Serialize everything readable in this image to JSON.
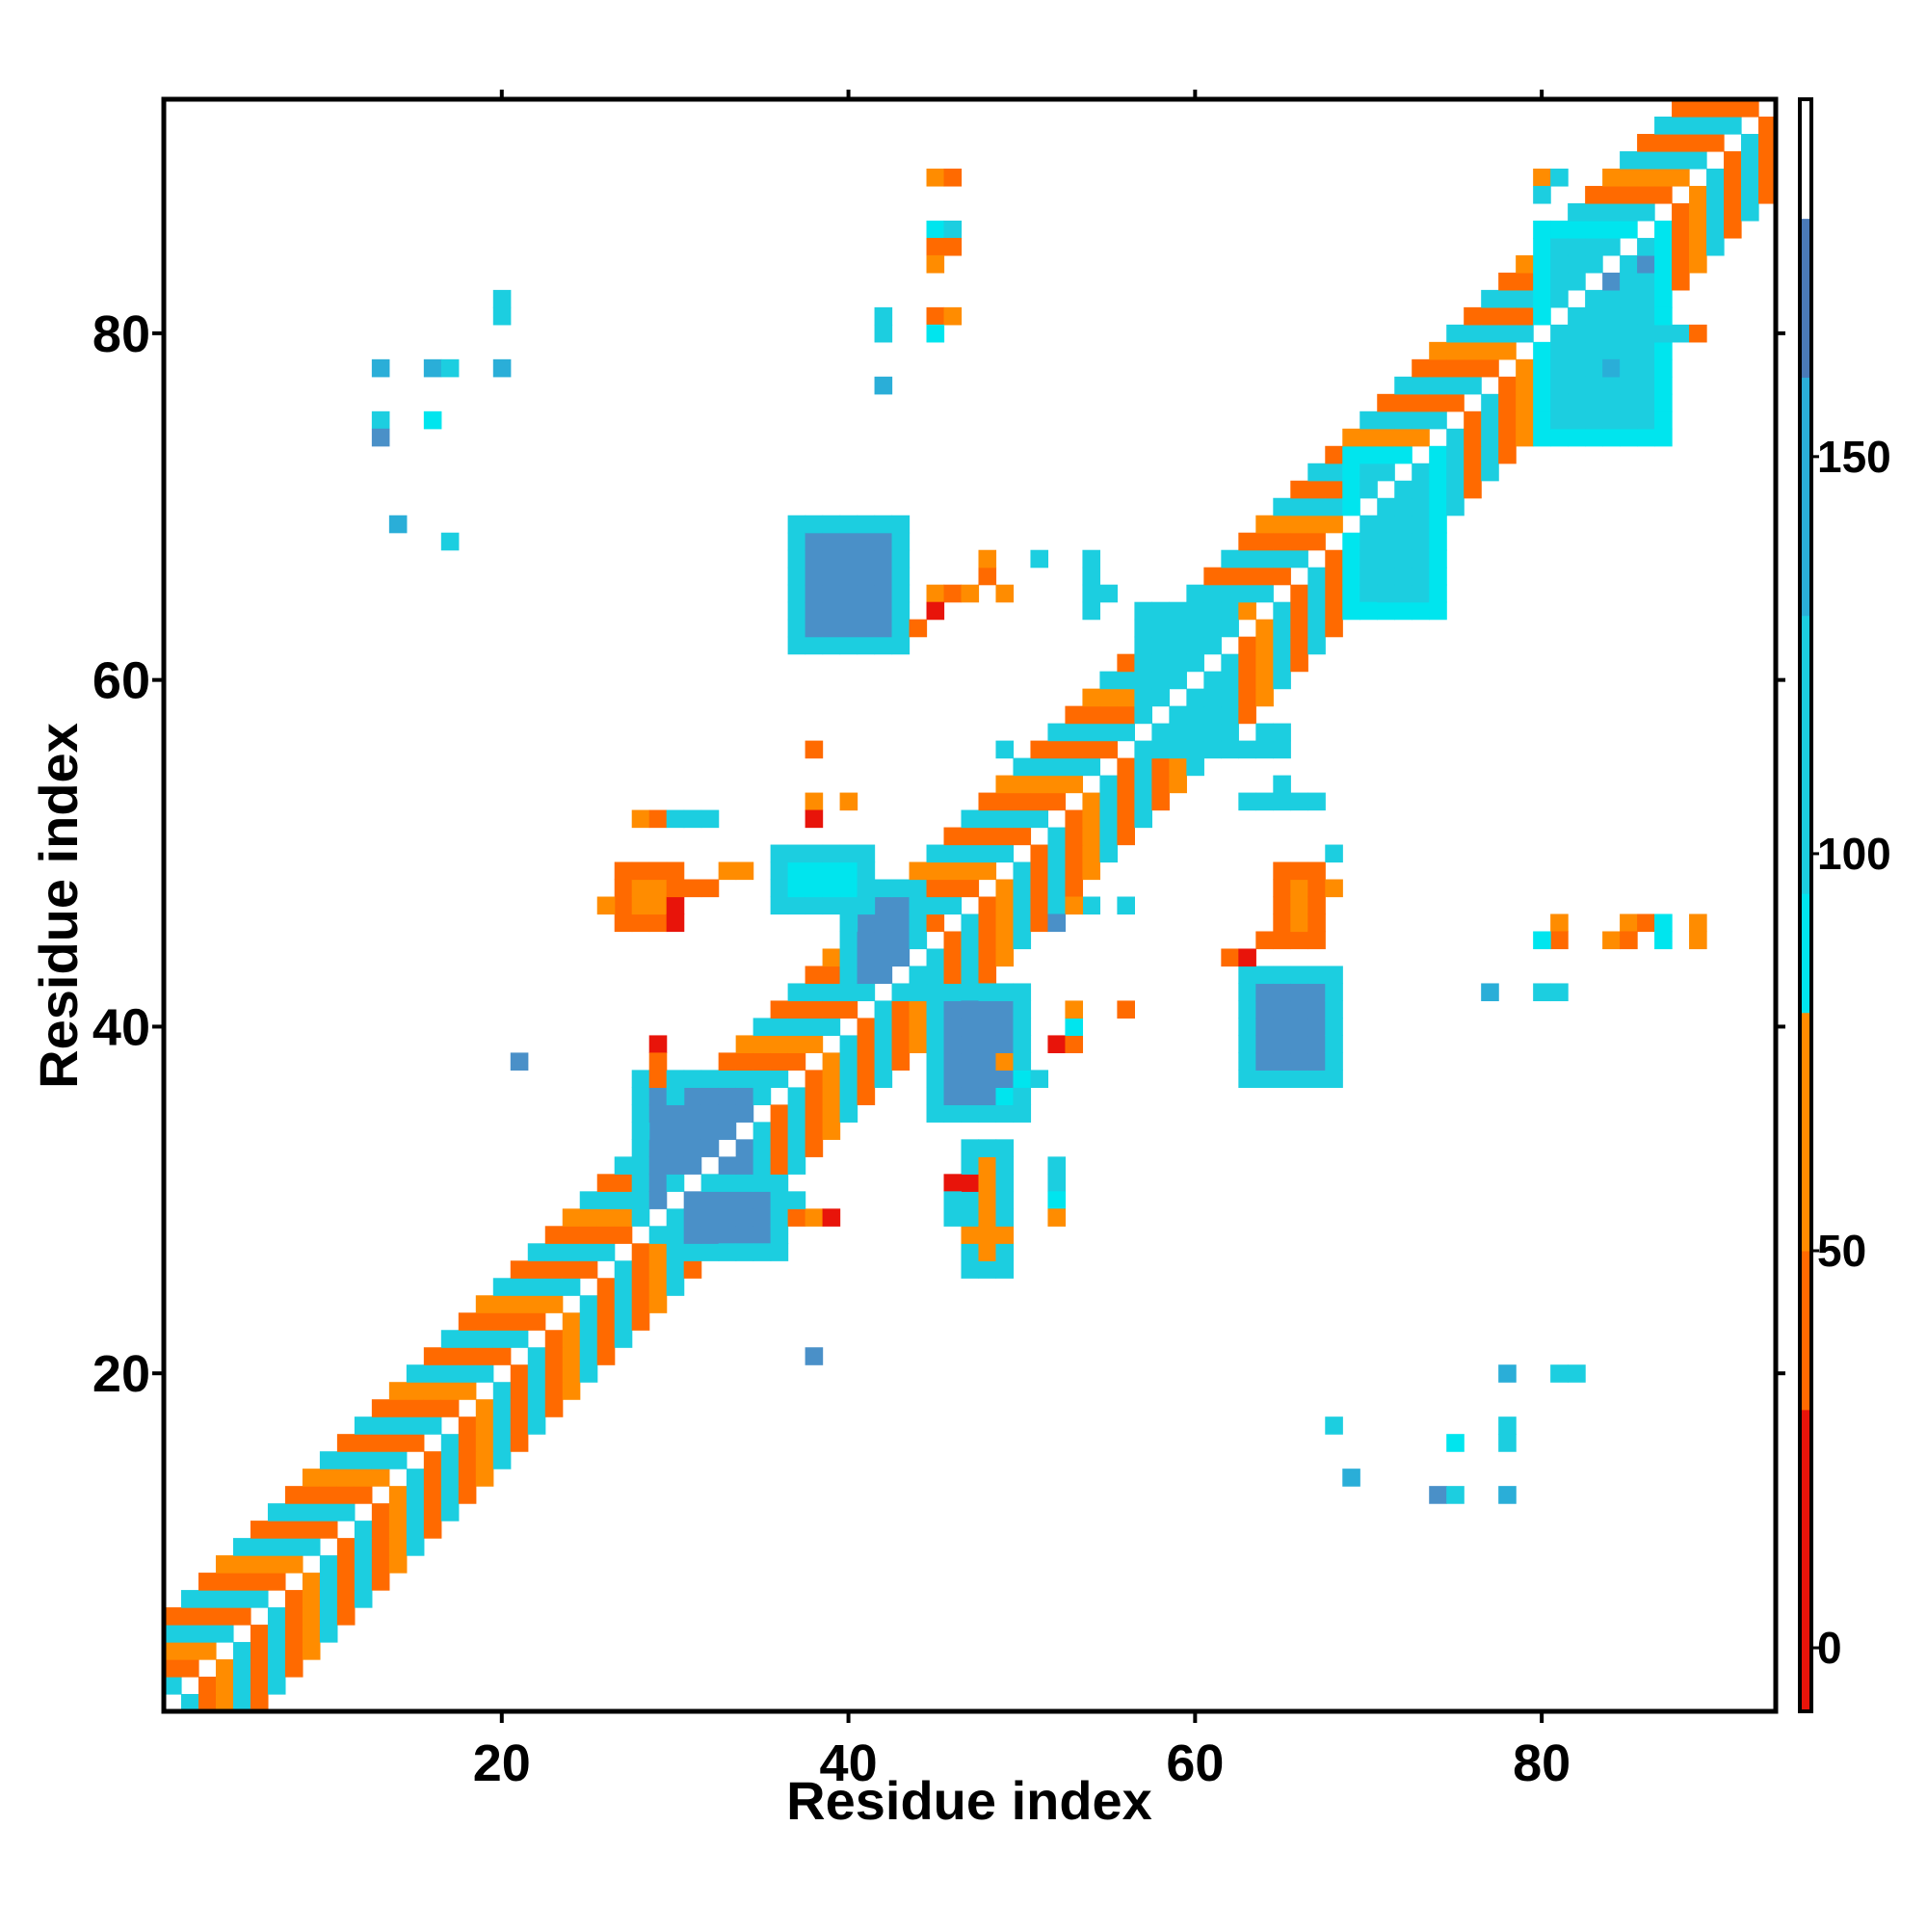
{
  "chart_data": {
    "type": "heatmap",
    "title": "",
    "xlabel": "Residue index",
    "ylabel": "Residue index",
    "xlim": [
      0.5,
      93.5
    ],
    "ylim": [
      0.5,
      93.5
    ],
    "x_ticks": [
      20,
      40,
      60,
      80
    ],
    "y_ticks": [
      20,
      40,
      60,
      80
    ],
    "x_tick_labels": [
      "20",
      "40",
      "60",
      "80"
    ],
    "y_tick_labels": [
      "20",
      "40",
      "60",
      "80"
    ],
    "grid": false,
    "legend": "colorbar-right",
    "colorbar": {
      "range": [
        -8,
        195
      ],
      "ticks": [
        0,
        50,
        100,
        150
      ],
      "tick_labels": [
        "0",
        "50",
        "100",
        "150"
      ],
      "bands": [
        {
          "from": -8,
          "to": 30,
          "color": "#e8140a"
        },
        {
          "from": 30,
          "to": 50,
          "color": "#ff6a00"
        },
        {
          "from": 50,
          "to": 80,
          "color": "#ff8c00"
        },
        {
          "from": 80,
          "to": 95,
          "color": "#00e5ee"
        },
        {
          "from": 95,
          "to": 130,
          "color": "#1ccee0"
        },
        {
          "from": 130,
          "to": 160,
          "color": "#2aaed8"
        },
        {
          "from": 160,
          "to": 180,
          "color": "#4a7ab8"
        },
        {
          "from": 180,
          "to": 195,
          "color": "#ffffff"
        }
      ]
    },
    "color_scheme": {
      "red": "#e8140a",
      "orange_red": "#ff6a00",
      "orange": "#ff8c00",
      "cyan": "#00e5ee",
      "light_blue": "#1ccee0",
      "steel_blue": "#4a90c8"
    },
    "diagonal_band": {
      "description": "contacts i,j with |i-j| from 1 to 5",
      "offsets": [
        1,
        2,
        3,
        4,
        5
      ],
      "pattern": [
        "#ff6a00",
        "#1ccee0",
        "#ff6a00",
        "#ff8c00",
        "#1ccee0"
      ]
    },
    "patches": [
      {
        "x": [
          28,
          35
        ],
        "y": [
          28,
          37
        ],
        "color": "#4a90c8",
        "edge": "#1ccee0"
      },
      {
        "x": [
          30,
          36
        ],
        "y": [
          27,
          31
        ],
        "color": "#4a90c8",
        "edge": "#1ccee0"
      },
      {
        "x": [
          40,
          44
        ],
        "y": [
          42,
          48
        ],
        "color": "#4a90c8",
        "edge": "#1ccee0"
      },
      {
        "x": [
          45,
          50
        ],
        "y": [
          35,
          42
        ],
        "color": "#4a90c8",
        "edge": "#1ccee0"
      },
      {
        "x": [
          63,
          68
        ],
        "y": [
          37,
          43
        ],
        "color": "#4a90c8",
        "edge": "#1ccee0"
      },
      {
        "x": [
          37,
          43
        ],
        "y": [
          62,
          69
        ],
        "color": "#4a90c8",
        "edge": "#1ccee0"
      },
      {
        "x": [
          57,
          62
        ],
        "y": [
          56,
          64
        ],
        "color": "#1ccee0",
        "edge": "#1ccee0"
      },
      {
        "x": [
          36,
          41
        ],
        "y": [
          47,
          50
        ],
        "color": "#00e5ee",
        "edge": "#1ccee0"
      },
      {
        "x": [
          27,
          30
        ],
        "y": [
          46,
          49
        ],
        "color": "#ff8c00",
        "edge": "#ff6a00"
      },
      {
        "x": [
          47,
          49
        ],
        "y": [
          26,
          33
        ],
        "color": "#ff8c00",
        "edge": "#1ccee0"
      },
      {
        "x": [
          65,
          67
        ],
        "y": [
          45,
          49
        ],
        "color": "#ff8c00",
        "edge": "#ff6a00"
      },
      {
        "x": [
          69,
          74
        ],
        "y": [
          64,
          73
        ],
        "color": "#1ccee0",
        "edge": "#00e5ee"
      },
      {
        "x": [
          80,
          87
        ],
        "y": [
          74,
          86
        ],
        "color": "#1ccee0",
        "edge": "#00e5ee"
      }
    ],
    "points": [
      {
        "x": 45,
        "y": 89,
        "color": "#ff8c00"
      },
      {
        "x": 46,
        "y": 89,
        "color": "#ff6a00"
      },
      {
        "x": 45,
        "y": 86,
        "color": "#00e5ee"
      },
      {
        "x": 46,
        "y": 86,
        "color": "#1ccee0"
      },
      {
        "x": 45,
        "y": 85,
        "color": "#ff6a00"
      },
      {
        "x": 46,
        "y": 85,
        "color": "#ff6a00"
      },
      {
        "x": 45,
        "y": 84,
        "color": "#ff8c00"
      },
      {
        "x": 45,
        "y": 81,
        "color": "#ff6a00"
      },
      {
        "x": 46,
        "y": 81,
        "color": "#ff8c00"
      },
      {
        "x": 45,
        "y": 80,
        "color": "#00e5ee"
      },
      {
        "x": 42,
        "y": 81,
        "color": "#1ccee0"
      },
      {
        "x": 42,
        "y": 80,
        "color": "#1ccee0"
      },
      {
        "x": 42,
        "y": 77,
        "color": "#2aaed8"
      },
      {
        "x": 20,
        "y": 82,
        "color": "#1ccee0"
      },
      {
        "x": 20,
        "y": 81,
        "color": "#1ccee0"
      },
      {
        "x": 13,
        "y": 78,
        "color": "#2aaed8"
      },
      {
        "x": 16,
        "y": 78,
        "color": "#2aaed8"
      },
      {
        "x": 17,
        "y": 78,
        "color": "#1ccee0"
      },
      {
        "x": 20,
        "y": 78,
        "color": "#2aaed8"
      },
      {
        "x": 13,
        "y": 75,
        "color": "#1ccee0"
      },
      {
        "x": 13,
        "y": 74,
        "color": "#4a90c8"
      },
      {
        "x": 16,
        "y": 75,
        "color": "#00e5ee"
      },
      {
        "x": 14,
        "y": 69,
        "color": "#2aaed8"
      },
      {
        "x": 17,
        "y": 68,
        "color": "#1ccee0"
      },
      {
        "x": 21,
        "y": 38,
        "color": "#4a90c8"
      },
      {
        "x": 38,
        "y": 21,
        "color": "#4a90c8"
      },
      {
        "x": 38,
        "y": 56,
        "color": "#ff6a00"
      },
      {
        "x": 49,
        "y": 56,
        "color": "#1ccee0"
      },
      {
        "x": 38,
        "y": 53,
        "color": "#ff8c00"
      },
      {
        "x": 40,
        "y": 53,
        "color": "#ff8c00"
      },
      {
        "x": 38,
        "y": 52,
        "color": "#e8140a"
      },
      {
        "x": 28,
        "y": 52,
        "color": "#ff8c00"
      },
      {
        "x": 29,
        "y": 52,
        "color": "#ff6a00"
      },
      {
        "x": 30,
        "y": 52,
        "color": "#1ccee0"
      },
      {
        "x": 31,
        "y": 52,
        "color": "#1ccee0"
      },
      {
        "x": 32,
        "y": 52,
        "color": "#1ccee0"
      },
      {
        "x": 26,
        "y": 47,
        "color": "#ff8c00"
      },
      {
        "x": 30,
        "y": 47,
        "color": "#e8140a"
      },
      {
        "x": 30,
        "y": 46,
        "color": "#e8140a"
      },
      {
        "x": 31,
        "y": 48,
        "color": "#ff6a00"
      },
      {
        "x": 32,
        "y": 48,
        "color": "#ff6a00"
      },
      {
        "x": 33,
        "y": 49,
        "color": "#ff8c00"
      },
      {
        "x": 34,
        "y": 49,
        "color": "#ff8c00"
      },
      {
        "x": 29,
        "y": 39,
        "color": "#e8140a"
      },
      {
        "x": 29,
        "y": 38,
        "color": "#ff6a00"
      },
      {
        "x": 30,
        "y": 36,
        "color": "#1ccee0"
      },
      {
        "x": 29,
        "y": 37,
        "color": "#ff6a00"
      },
      {
        "x": 37,
        "y": 29,
        "color": "#ff6a00"
      },
      {
        "x": 38,
        "y": 29,
        "color": "#ff8c00"
      },
      {
        "x": 39,
        "y": 29,
        "color": "#e8140a"
      },
      {
        "x": 37,
        "y": 30,
        "color": "#1ccee0"
      },
      {
        "x": 46,
        "y": 31,
        "color": "#e8140a"
      },
      {
        "x": 47,
        "y": 31,
        "color": "#e8140a"
      },
      {
        "x": 46,
        "y": 30,
        "color": "#1ccee0"
      },
      {
        "x": 46,
        "y": 29,
        "color": "#1ccee0"
      },
      {
        "x": 47,
        "y": 28,
        "color": "#ff8c00"
      },
      {
        "x": 48,
        "y": 28,
        "color": "#ff8c00"
      },
      {
        "x": 49,
        "y": 28,
        "color": "#ff8c00"
      },
      {
        "x": 52,
        "y": 32,
        "color": "#1ccee0"
      },
      {
        "x": 52,
        "y": 31,
        "color": "#1ccee0"
      },
      {
        "x": 52,
        "y": 30,
        "color": "#00e5ee"
      },
      {
        "x": 52,
        "y": 29,
        "color": "#ff8c00"
      },
      {
        "x": 50,
        "y": 37,
        "color": "#00e5ee"
      },
      {
        "x": 51,
        "y": 37,
        "color": "#1ccee0"
      },
      {
        "x": 49,
        "y": 36,
        "color": "#00e5ee"
      },
      {
        "x": 48,
        "y": 35,
        "color": "#1ccee0"
      },
      {
        "x": 49,
        "y": 38,
        "color": "#ff8c00"
      },
      {
        "x": 52,
        "y": 39,
        "color": "#e8140a"
      },
      {
        "x": 53,
        "y": 39,
        "color": "#ff6a00"
      },
      {
        "x": 53,
        "y": 40,
        "color": "#00e5ee"
      },
      {
        "x": 53,
        "y": 41,
        "color": "#ff8c00"
      },
      {
        "x": 56,
        "y": 41,
        "color": "#ff6a00"
      },
      {
        "x": 54,
        "y": 47,
        "color": "#1ccee0"
      },
      {
        "x": 56,
        "y": 47,
        "color": "#1ccee0"
      },
      {
        "x": 53,
        "y": 47,
        "color": "#ff8c00"
      },
      {
        "x": 52,
        "y": 46,
        "color": "#4a90c8"
      },
      {
        "x": 62,
        "y": 44,
        "color": "#ff6a00"
      },
      {
        "x": 63,
        "y": 44,
        "color": "#e8140a"
      },
      {
        "x": 64,
        "y": 45,
        "color": "#ff6a00"
      },
      {
        "x": 66,
        "y": 46,
        "color": "#ff8c00"
      },
      {
        "x": 68,
        "y": 48,
        "color": "#ff8c00"
      },
      {
        "x": 68,
        "y": 50,
        "color": "#1ccee0"
      },
      {
        "x": 63,
        "y": 53,
        "color": "#1ccee0"
      },
      {
        "x": 64,
        "y": 53,
        "color": "#1ccee0"
      },
      {
        "x": 65,
        "y": 53,
        "color": "#1ccee0"
      },
      {
        "x": 66,
        "y": 53,
        "color": "#1ccee0"
      },
      {
        "x": 67,
        "y": 53,
        "color": "#1ccee0"
      },
      {
        "x": 65,
        "y": 54,
        "color": "#1ccee0"
      },
      {
        "x": 62,
        "y": 56,
        "color": "#1ccee0"
      },
      {
        "x": 63,
        "y": 56,
        "color": "#1ccee0"
      },
      {
        "x": 64,
        "y": 56,
        "color": "#1ccee0"
      },
      {
        "x": 65,
        "y": 56,
        "color": "#1ccee0"
      },
      {
        "x": 62,
        "y": 57,
        "color": "#1ccee0"
      },
      {
        "x": 64,
        "y": 57,
        "color": "#1ccee0"
      },
      {
        "x": 65,
        "y": 57,
        "color": "#1ccee0"
      },
      {
        "x": 45,
        "y": 65,
        "color": "#ff8c00"
      },
      {
        "x": 46,
        "y": 65,
        "color": "#ff6a00"
      },
      {
        "x": 47,
        "y": 65,
        "color": "#ff8c00"
      },
      {
        "x": 48,
        "y": 66,
        "color": "#ff6a00"
      },
      {
        "x": 48,
        "y": 67,
        "color": "#ff8c00"
      },
      {
        "x": 49,
        "y": 65,
        "color": "#ff8c00"
      },
      {
        "x": 45,
        "y": 64,
        "color": "#e8140a"
      },
      {
        "x": 44,
        "y": 63,
        "color": "#ff6a00"
      },
      {
        "x": 51,
        "y": 67,
        "color": "#1ccee0"
      },
      {
        "x": 54,
        "y": 67,
        "color": "#1ccee0"
      },
      {
        "x": 54,
        "y": 66,
        "color": "#1ccee0"
      },
      {
        "x": 54,
        "y": 65,
        "color": "#1ccee0"
      },
      {
        "x": 55,
        "y": 65,
        "color": "#1ccee0"
      },
      {
        "x": 54,
        "y": 64,
        "color": "#1ccee0"
      },
      {
        "x": 81,
        "y": 46,
        "color": "#ff8c00"
      },
      {
        "x": 81,
        "y": 45,
        "color": "#ff6a00"
      },
      {
        "x": 80,
        "y": 45,
        "color": "#00e5ee"
      },
      {
        "x": 84,
        "y": 45,
        "color": "#ff8c00"
      },
      {
        "x": 85,
        "y": 46,
        "color": "#ff8c00"
      },
      {
        "x": 85,
        "y": 45,
        "color": "#ff6a00"
      },
      {
        "x": 86,
        "y": 46,
        "color": "#ff6a00"
      },
      {
        "x": 87,
        "y": 46,
        "color": "#00e5ee"
      },
      {
        "x": 87,
        "y": 45,
        "color": "#00e5ee"
      },
      {
        "x": 89,
        "y": 46,
        "color": "#ff8c00"
      },
      {
        "x": 89,
        "y": 45,
        "color": "#ff8c00"
      },
      {
        "x": 77,
        "y": 42,
        "color": "#2aaed8"
      },
      {
        "x": 80,
        "y": 42,
        "color": "#1ccee0"
      },
      {
        "x": 81,
        "y": 42,
        "color": "#1ccee0"
      },
      {
        "x": 78,
        "y": 20,
        "color": "#2aaed8"
      },
      {
        "x": 81,
        "y": 20,
        "color": "#1ccee0"
      },
      {
        "x": 82,
        "y": 20,
        "color": "#1ccee0"
      },
      {
        "x": 68,
        "y": 17,
        "color": "#1ccee0"
      },
      {
        "x": 75,
        "y": 16,
        "color": "#00e5ee"
      },
      {
        "x": 78,
        "y": 17,
        "color": "#1ccee0"
      },
      {
        "x": 78,
        "y": 16,
        "color": "#1ccee0"
      },
      {
        "x": 69,
        "y": 14,
        "color": "#2aaed8"
      },
      {
        "x": 74,
        "y": 13,
        "color": "#4a90c8"
      },
      {
        "x": 75,
        "y": 13,
        "color": "#1ccee0"
      },
      {
        "x": 78,
        "y": 13,
        "color": "#2aaed8"
      },
      {
        "x": 84,
        "y": 78,
        "color": "#2aaed8"
      },
      {
        "x": 82,
        "y": 79,
        "color": "#1ccee0"
      },
      {
        "x": 87,
        "y": 80,
        "color": "#1ccee0"
      },
      {
        "x": 88,
        "y": 80,
        "color": "#1ccee0"
      },
      {
        "x": 89,
        "y": 80,
        "color": "#ff6a00"
      },
      {
        "x": 80,
        "y": 89,
        "color": "#ff8c00"
      },
      {
        "x": 81,
        "y": 89,
        "color": "#1ccee0"
      },
      {
        "x": 80,
        "y": 88,
        "color": "#1ccee0"
      },
      {
        "x": 86,
        "y": 84,
        "color": "#4a90c8"
      },
      {
        "x": 84,
        "y": 83,
        "color": "#4a90c8"
      }
    ]
  }
}
